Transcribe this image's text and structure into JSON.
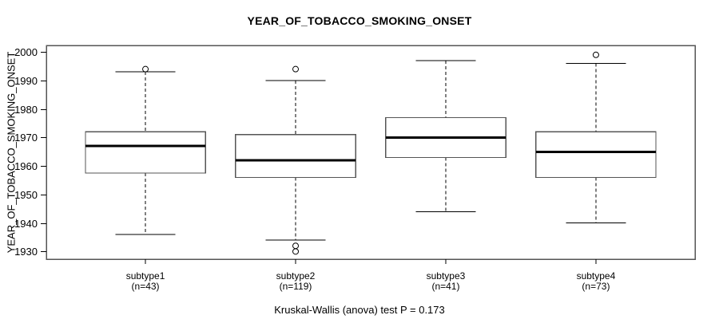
{
  "chart_data": {
    "type": "boxplot",
    "title": "YEAR_OF_TOBACCO_SMOKING_ONSET",
    "ylabel": "YEAR_OF_TOBACCO_SMOKING_ONSET",
    "annotation": "Kruskal-Wallis (anova) test P = 0.173",
    "ylim": [
      1927.3,
      2002.3
    ],
    "yticks": [
      1930,
      1940,
      1950,
      1960,
      1970,
      1980,
      1990,
      2000
    ],
    "grid": false,
    "legend_position": "none",
    "categories": [
      "subtype1",
      "subtype2",
      "subtype3",
      "subtype4"
    ],
    "category_counts": [
      "(n=43)",
      "(n=119)",
      "(n=41)",
      "(n=73)"
    ],
    "series": [
      {
        "name": "subtype1",
        "n": 43,
        "whisker_low": 1936,
        "q1": 1957.5,
        "median": 1967,
        "q3": 1972,
        "whisker_high": 1993,
        "outliers": [
          1994
        ]
      },
      {
        "name": "subtype2",
        "n": 119,
        "whisker_low": 1934,
        "q1": 1956,
        "median": 1962,
        "q3": 1971,
        "whisker_high": 1990,
        "outliers": [
          1994,
          1932,
          1930
        ]
      },
      {
        "name": "subtype3",
        "n": 41,
        "whisker_low": 1944,
        "q1": 1963,
        "median": 1970,
        "q3": 1977,
        "whisker_high": 1997,
        "outliers": []
      },
      {
        "name": "subtype4",
        "n": 73,
        "whisker_low": 1940,
        "q1": 1956,
        "median": 1965,
        "q3": 1972,
        "whisker_high": 1996,
        "outliers": [
          1999
        ]
      }
    ],
    "colors": {
      "ink": "#000000",
      "box_border": "#555555",
      "median": "#000000",
      "background": "#ffffff"
    }
  }
}
